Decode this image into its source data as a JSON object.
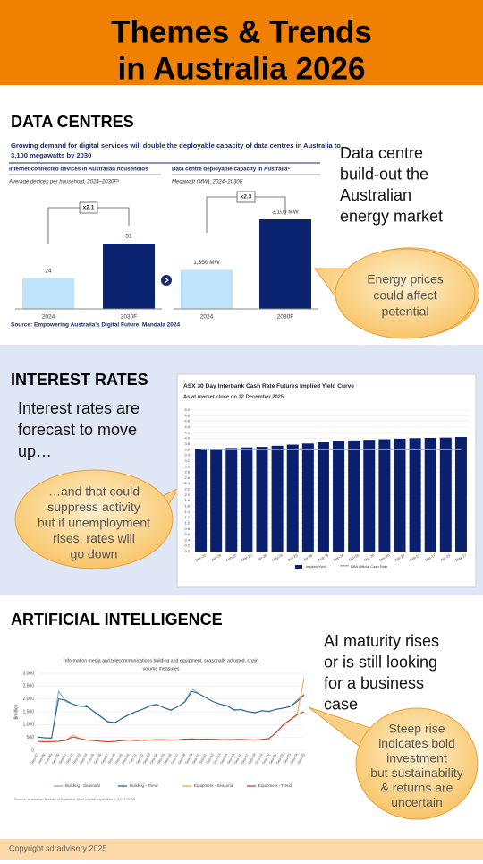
{
  "header": {
    "title_lines": [
      "Themes & Trends",
      "in Australia 2026"
    ]
  },
  "data_centres": {
    "heading": "DATA CENTRES",
    "text_lines": [
      "Data centre",
      "build-out the",
      "Australian",
      "energy market"
    ],
    "bubble_lines": [
      "Energy prices",
      "could affect",
      "potential"
    ],
    "chart": {
      "type": "bar",
      "title_lines": [
        "Growing demand for digital services will double the deployable capacity of data centres in Australia to",
        "3,100 megawatts by 2030"
      ],
      "source": "Source: Empowering Australia's Digital Future, Mandala 2024",
      "panels": [
        {
          "title": "Internet-connected devices in Australian households",
          "subtitle": "Average devices per household, 2024–2030F⁵",
          "categories": [
            "2024",
            "2030F"
          ],
          "values": [
            24,
            51
          ],
          "colors": [
            "#bfe3fa",
            "#0a2472"
          ],
          "multiplier": "x2.1"
        },
        {
          "title": "Data centre deployable capacity in Australia⁶",
          "subtitle": "Megawatt (MW), 2024–2030F",
          "categories": [
            "2024",
            "2030F"
          ],
          "values": [
            1350,
            3100
          ],
          "value_labels": [
            "1,350 MW",
            "3,100 MW"
          ],
          "colors": [
            "#bfe3fa",
            "#0a2472"
          ],
          "multiplier": "x2.3"
        }
      ]
    }
  },
  "interest_rates": {
    "heading": "INTEREST RATES",
    "text_lines": [
      "Interest rates are",
      "forecast to move",
      "up…"
    ],
    "bubble_lines": [
      "…and that could",
      "suppress activity",
      "but if unemployment",
      "rises, rates will",
      "go down"
    ],
    "chart": {
      "type": "bar",
      "title": "ASX 30 Day Interbank Cash Rate Futures Implied Yield Curve",
      "subtitle": "As at market close on 12 December 2025",
      "categories": [
        "Dec-25",
        "Jan-26",
        "Feb-26",
        "Mar-26",
        "Apr-26",
        "May-26",
        "Jun-26",
        "Jul-26",
        "Aug-26",
        "Sep-26",
        "Oct-26",
        "Nov-26",
        "Dec-26",
        "Jan-27",
        "Feb-27",
        "Mar-27",
        "Apr-27",
        "May-27"
      ],
      "series": [
        {
          "name": "Implied Yield",
          "type": "bar",
          "color": "#0a1f6e",
          "values": [
            3.62,
            3.63,
            3.66,
            3.68,
            3.7,
            3.74,
            3.78,
            3.82,
            3.86,
            3.9,
            3.93,
            3.95,
            3.97,
            3.99,
            4.01,
            4.02,
            4.03,
            4.05
          ]
        },
        {
          "name": "RBA Official Cash Rate",
          "type": "line",
          "color": "#9bb0e0",
          "values": [
            3.6,
            3.6,
            3.6,
            3.6,
            3.6,
            3.6,
            3.6,
            3.6,
            3.6,
            3.6,
            3.6,
            3.6,
            3.6,
            3.6,
            3.6,
            3.6,
            3.6,
            3.6
          ]
        }
      ],
      "ylim": [
        0,
        5
      ],
      "yticks": [
        {
          "value": 0,
          "label": "0.0"
        },
        0.2,
        0.4,
        0.6,
        0.8,
        {
          "value": 1,
          "label": "1.0"
        },
        1.2,
        1.4,
        1.6,
        1.8,
        {
          "value": 2,
          "label": "2.0"
        },
        2.2,
        2.4,
        2.6,
        2.8,
        {
          "value": 3,
          "label": "3.0"
        },
        3.2,
        3.4,
        3.6,
        3.8,
        {
          "value": 4,
          "label": "4.0"
        },
        4.2,
        4.4,
        4.6,
        4.8,
        {
          "value": 5,
          "label": "5.0"
        }
      ],
      "grid": true
    }
  },
  "artificial_intelligence": {
    "heading": "ARTIFICIAL INTELLIGENCE",
    "text_lines": [
      "AI maturity rises",
      "or is still looking",
      "for a business",
      "case"
    ],
    "bubble_lines": [
      "Steep rise",
      "indicates bold",
      "investment",
      "but sustainability",
      "& returns are",
      "uncertain"
    ],
    "chart": {
      "type": "line",
      "title_lines": [
        "Information media and telecommunications building and equipment, seasonally adjusted, chain",
        "volume measures"
      ],
      "y_label": "$million",
      "source": "Source: Australian Bureau of Statistics, New capital expenditure, 27/11/2025",
      "categories": [
        "Sep-87",
        "Sep-88",
        "Sep-89",
        "Sep-90",
        "Sep-91",
        "Sep-92",
        "Sep-93",
        "Sep-94",
        "Sep-95",
        "Sep-96",
        "Sep-97",
        "Sep-98",
        "Sep-99",
        "Sep-00",
        "Sep-01",
        "Sep-02",
        "Sep-03",
        "Sep-04",
        "Sep-05",
        "Sep-06",
        "Sep-07",
        "Sep-08",
        "Sep-09",
        "Sep-10",
        "Sep-11",
        "Sep-12",
        "Sep-13",
        "Sep-14",
        "Sep-15",
        "Sep-16",
        "Sep-17",
        "Sep-18",
        "Sep-19",
        "Sep-20",
        "Sep-21",
        "Sep-22",
        "Sep-23",
        "Sep-24",
        "Sep-25"
      ],
      "series": [
        {
          "name": "Building - Seasonal",
          "color": "#6aaed6",
          "values": [
            520,
            480,
            470,
            2300,
            1900,
            1800,
            1700,
            1750,
            1500,
            1300,
            1100,
            1050,
            1250,
            1400,
            1500,
            1600,
            1750,
            1800,
            1650,
            1550,
            1700,
            1900,
            2400,
            2200,
            2050,
            1900,
            1800,
            1750,
            1550,
            1600,
            1500,
            1450,
            1550,
            1500,
            1600,
            1650,
            1700,
            1950,
            2200
          ]
        },
        {
          "name": "Building - Trend",
          "color": "#2c5c78",
          "values": [
            520,
            490,
            480,
            2000,
            1950,
            1800,
            1720,
            1700,
            1520,
            1320,
            1120,
            1080,
            1230,
            1380,
            1500,
            1600,
            1720,
            1780,
            1660,
            1570,
            1700,
            1880,
            2300,
            2200,
            2050,
            1900,
            1800,
            1730,
            1580,
            1580,
            1510,
            1470,
            1540,
            1520,
            1590,
            1640,
            1700,
            1900,
            2150
          ]
        },
        {
          "name": "Equipment - Seasonal",
          "color": "#f0a040",
          "values": [
            350,
            330,
            340,
            350,
            380,
            600,
            450,
            400,
            380,
            350,
            330,
            340,
            380,
            400,
            380,
            390,
            400,
            420,
            410,
            400,
            410,
            430,
            450,
            420,
            440,
            430,
            420,
            410,
            420,
            430,
            410,
            400,
            430,
            450,
            700,
            1000,
            1200,
            1400,
            2800
          ]
        },
        {
          "name": "Equipment - Trend",
          "color": "#c0392b",
          "values": [
            350,
            335,
            340,
            350,
            390,
            520,
            460,
            400,
            380,
            355,
            335,
            345,
            375,
            395,
            385,
            390,
            400,
            415,
            410,
            405,
            410,
            430,
            440,
            430,
            435,
            430,
            420,
            415,
            420,
            425,
            415,
            405,
            425,
            460,
            680,
            980,
            1180,
            1380,
            1500
          ]
        }
      ],
      "ylim": [
        0,
        3000
      ],
      "yticks": [
        0,
        500,
        {
          "value": 1000,
          "label": "1,000"
        },
        {
          "value": 1500,
          "label": "1,500"
        },
        {
          "value": 2000,
          "label": "2,000"
        },
        {
          "value": 2500,
          "label": "2,500"
        },
        {
          "value": 3000,
          "label": "3,000"
        }
      ],
      "grid": true
    }
  },
  "footer": {
    "copyright": "Copyright sdradvisory 2025"
  }
}
